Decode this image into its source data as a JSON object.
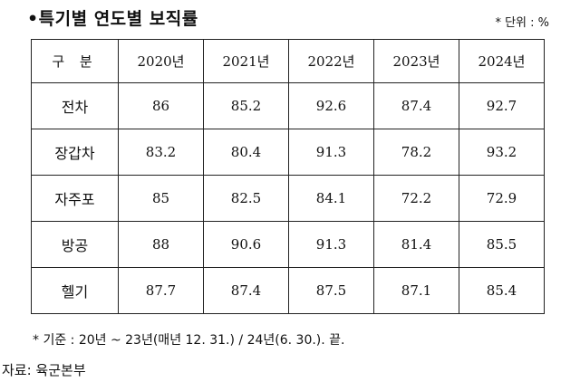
{
  "title": "•특기별 연도별 보직률",
  "unit": "* 단위 : %",
  "table": {
    "corner": "구 분",
    "years": [
      "2020년",
      "2021년",
      "2022년",
      "2023년",
      "2024년"
    ],
    "rows": [
      {
        "label": "전차",
        "values": [
          "86",
          "85.2",
          "92.6",
          "87.4",
          "92.7"
        ]
      },
      {
        "label": "장갑차",
        "values": [
          "83.2",
          "80.4",
          "91.3",
          "78.2",
          "93.2"
        ]
      },
      {
        "label": "자주포",
        "values": [
          "85",
          "82.5",
          "84.1",
          "72.2",
          "72.9"
        ]
      },
      {
        "label": "방공",
        "values": [
          "88",
          "90.6",
          "91.3",
          "81.4",
          "85.5"
        ]
      },
      {
        "label": "헬기",
        "values": [
          "87.7",
          "87.4",
          "87.5",
          "87.1",
          "85.4"
        ]
      }
    ]
  },
  "note": "* 기준 : 20년 ~ 23년(매년 12. 31.) / 24년(6. 30.).   끝.",
  "source": "자료: 육군본부"
}
